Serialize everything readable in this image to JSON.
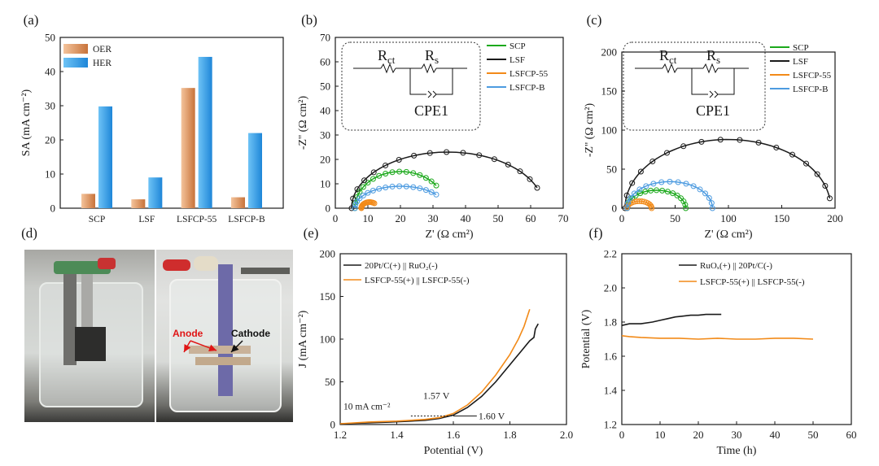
{
  "panels": {
    "a": {
      "label": "(a)"
    },
    "b": {
      "label": "(b)"
    },
    "c": {
      "label": "(c)"
    },
    "d": {
      "label": "(d)",
      "photo_labels": {
        "anode": "Anode",
        "cathode": "Cathode"
      }
    },
    "e": {
      "label": "(e)",
      "annotations": {
        "current": "10 mA cm⁻²",
        "v157": "1.57 V",
        "v160": "1.60 V"
      }
    },
    "f": {
      "label": "(f)"
    }
  },
  "circuit": {
    "r1": "R",
    "r1_sub": "ct",
    "r2": "R",
    "r2_sub": "s",
    "cpe": "CPE1"
  },
  "colors": {
    "oer": "#e8a070",
    "her": "#3ea6ec",
    "scp": "#1ca91c",
    "lsf": "#1a1a1a",
    "lsfcp55": "#f28a18",
    "lsfcpb": "#4d9be0"
  },
  "chart_data": [
    {
      "id": "a",
      "type": "bar",
      "categories": [
        "SCP",
        "LSF",
        "LSFCP-55",
        "LSFCP-B"
      ],
      "series": [
        {
          "name": "OER",
          "values": [
            4.2,
            2.6,
            35.2,
            3.2
          ]
        },
        {
          "name": "HER",
          "values": [
            29.8,
            9.0,
            44.3,
            22.0
          ]
        }
      ],
      "ylabel": "SA (mA cm⁻²)",
      "ylim": [
        0,
        50
      ],
      "yticks": [
        "0",
        "10",
        "20",
        "30",
        "40",
        "50"
      ],
      "legend": "top-left"
    },
    {
      "id": "b",
      "type": "scatter",
      "xlabel": "Z' (Ω cm²)",
      "ylabel": "-Z'' (Ω cm²)",
      "xlim": [
        0,
        70
      ],
      "ylim": [
        0,
        70
      ],
      "xticks": [
        "0",
        "10",
        "20",
        "30",
        "40",
        "50",
        "60",
        "70"
      ],
      "yticks": [
        "0",
        "10",
        "20",
        "30",
        "40",
        "50",
        "60",
        "70"
      ],
      "legend": "top-right",
      "series": [
        {
          "name": "SCP",
          "arc": {
            "x0": 6,
            "x1": 34,
            "peak": 15
          },
          "shown_to_x": 31
        },
        {
          "name": "LSF",
          "arc": {
            "x0": 5,
            "x1": 64,
            "peak": 23
          },
          "shown_to_x": 62
        },
        {
          "name": "LSFCP-55",
          "arc": {
            "x0": 8,
            "x1": 13,
            "peak": 2.5
          },
          "shown_to_x": 12
        },
        {
          "name": "LSFCP-B",
          "arc": {
            "x0": 6,
            "x1": 34,
            "peak": 9
          },
          "shown_to_x": 31
        }
      ]
    },
    {
      "id": "c",
      "type": "scatter",
      "xlabel": "Z' (Ω cm²)",
      "ylabel": "-Z'' (Ω cm²)",
      "xlim": [
        0,
        200
      ],
      "ylim": [
        0,
        200
      ],
      "xticks": [
        "0",
        "50",
        "100",
        "150",
        "200"
      ],
      "yticks": [
        "0",
        "50",
        "100",
        "150",
        "200"
      ],
      "legend": "top-right",
      "series": [
        {
          "name": "SCP",
          "arc": {
            "x0": 5,
            "x1": 60,
            "peak": 23
          },
          "shown_to_x": 60
        },
        {
          "name": "LSF",
          "arc": {
            "x0": 3,
            "x1": 196,
            "peak": 88
          },
          "shown_to_x": 195
        },
        {
          "name": "LSFCP-55",
          "arc": {
            "x0": 5,
            "x1": 28,
            "peak": 9
          },
          "shown_to_x": 28
        },
        {
          "name": "LSFCP-B",
          "arc": {
            "x0": 5,
            "x1": 85,
            "peak": 34
          },
          "shown_to_x": 85
        }
      ]
    },
    {
      "id": "e",
      "type": "line",
      "xlabel": "Potential (V)",
      "ylabel": "J (mA cm⁻²)",
      "xlim": [
        1.2,
        2.0
      ],
      "ylim": [
        0,
        200
      ],
      "xticks": [
        "1.2",
        "1.4",
        "1.6",
        "1.8",
        "2.0"
      ],
      "yticks": [
        "0",
        "50",
        "100",
        "150",
        "200"
      ],
      "legend": "top-left",
      "series": [
        {
          "name": "20Pt/C(+) || RuO₂(-)",
          "x": [
            1.2,
            1.3,
            1.38,
            1.45,
            1.5,
            1.55,
            1.6,
            1.65,
            1.7,
            1.75,
            1.8,
            1.84,
            1.87,
            1.885,
            1.89,
            1.9
          ],
          "y": [
            1,
            2,
            3,
            4,
            5,
            7,
            11,
            20,
            33,
            50,
            70,
            86,
            98,
            102,
            112,
            118
          ]
        },
        {
          "name": "LSFCP-55(+) || LSFCP-55(-)",
          "x": [
            1.2,
            1.3,
            1.4,
            1.45,
            1.5,
            1.55,
            1.6,
            1.65,
            1.7,
            1.75,
            1.8,
            1.83,
            1.85,
            1.87
          ],
          "y": [
            1,
            3,
            4,
            5,
            6,
            8,
            13,
            23,
            38,
            58,
            82,
            100,
            115,
            135
          ]
        }
      ]
    },
    {
      "id": "f",
      "type": "line",
      "xlabel": "Time (h)",
      "ylabel": "Potential (V)",
      "xlim": [
        0,
        60
      ],
      "ylim": [
        1.2,
        2.2
      ],
      "xticks": [
        "0",
        "10",
        "20",
        "30",
        "40",
        "50",
        "60"
      ],
      "yticks": [
        "1.2",
        "1.4",
        "1.6",
        "1.8",
        "2.0",
        "2.2"
      ],
      "legend": "top-left",
      "series": [
        {
          "name": "RuOₓ(+) || 20Pt/C(-)",
          "x": [
            0,
            2,
            5,
            8,
            10,
            12,
            14,
            16,
            18,
            20,
            22,
            24,
            26
          ],
          "y": [
            1.78,
            1.79,
            1.79,
            1.8,
            1.81,
            1.82,
            1.83,
            1.835,
            1.84,
            1.84,
            1.845,
            1.845,
            1.845
          ]
        },
        {
          "name": "LSFCP-55(+) || LSFCP-55(-)",
          "x": [
            0,
            2,
            5,
            10,
            15,
            20,
            25,
            30,
            35,
            40,
            45,
            50
          ],
          "y": [
            1.72,
            1.715,
            1.71,
            1.705,
            1.705,
            1.7,
            1.705,
            1.7,
            1.7,
            1.705,
            1.705,
            1.7
          ]
        }
      ]
    }
  ]
}
